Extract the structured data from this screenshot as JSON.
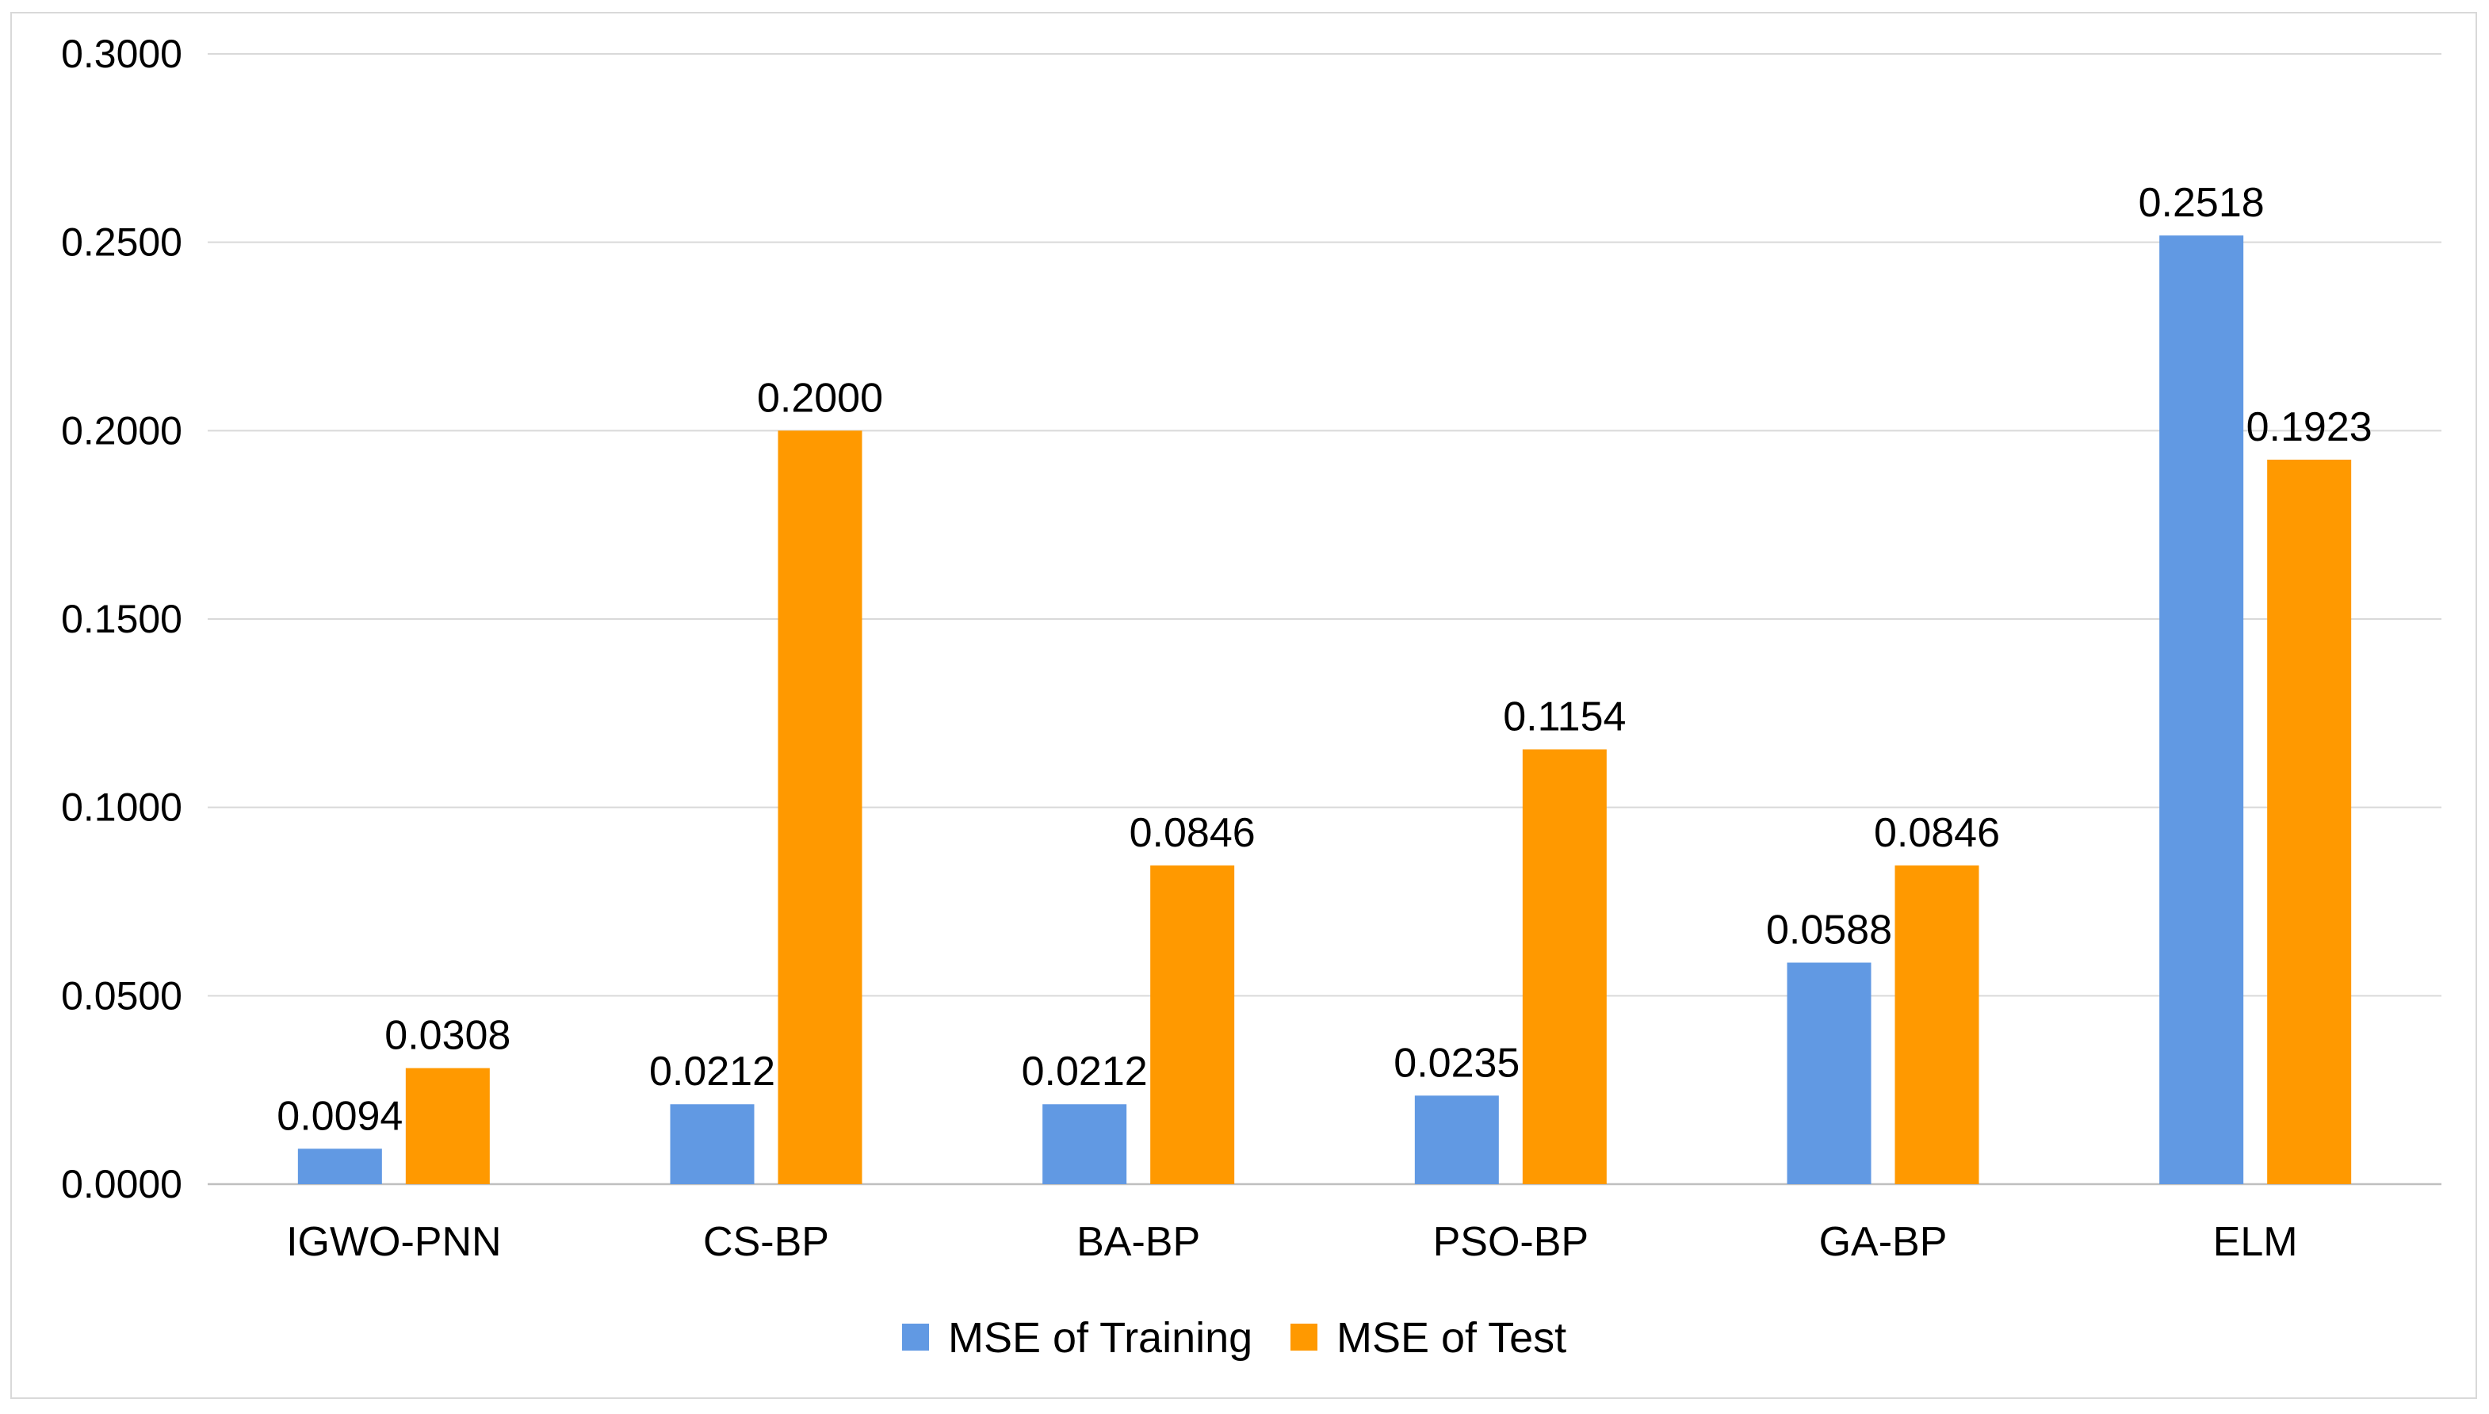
{
  "chart_data": {
    "type": "bar",
    "title": "",
    "xlabel": "",
    "ylabel": "",
    "categories": [
      "IGWO-PNN",
      "CS-BP",
      "BA-BP",
      "PSO-BP",
      "GA-BP",
      "ELM"
    ],
    "series": [
      {
        "name": "MSE of Training",
        "color": "#6199e3",
        "values": [
          0.0094,
          0.0212,
          0.0212,
          0.0235,
          0.0588,
          0.2518
        ],
        "labels": [
          "0.0094",
          "0.0212",
          "0.0212",
          "0.0235",
          "0.0588",
          "0.2518"
        ]
      },
      {
        "name": "MSE of Test",
        "color": "#ff9900",
        "values": [
          0.0308,
          0.2,
          0.0846,
          0.1154,
          0.0846,
          0.1923
        ],
        "labels": [
          "0.0308",
          "0.2000",
          "0.0846",
          "0.1154",
          "0.0846",
          "0.1923"
        ]
      }
    ],
    "ylim": [
      0,
      0.3
    ],
    "yticks": [
      0,
      0.05,
      0.1,
      0.15,
      0.2,
      0.25,
      0.3
    ],
    "ytick_labels": [
      "0.0000",
      "0.0500",
      "0.1000",
      "0.1500",
      "0.2000",
      "0.2500",
      "0.3000"
    ],
    "grid": true,
    "legend": "bottom-center"
  }
}
